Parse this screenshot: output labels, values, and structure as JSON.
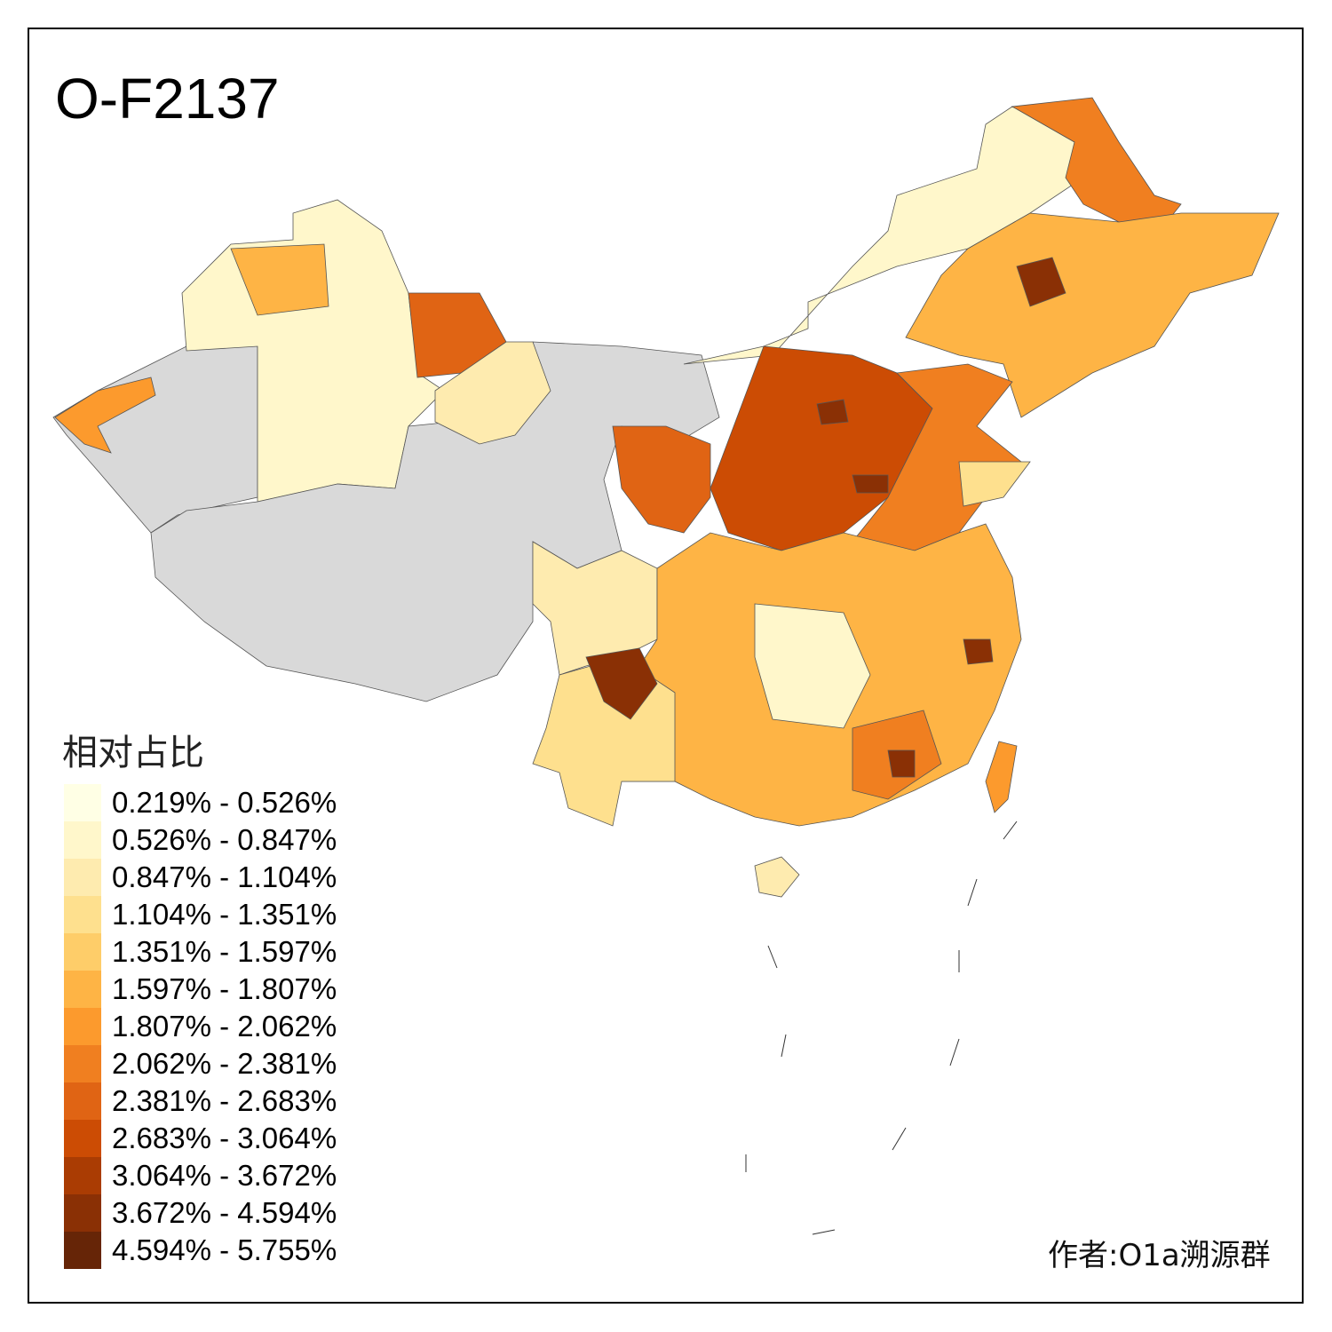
{
  "title": "O-F2137",
  "legend": {
    "title": "相对占比",
    "items": [
      {
        "label": "0.219% - 0.526%",
        "color": "#FFFFE5"
      },
      {
        "label": "0.526% - 0.847%",
        "color": "#FFF7CB"
      },
      {
        "label": "0.847% - 1.104%",
        "color": "#FEEBAF"
      },
      {
        "label": "1.104% - 1.351%",
        "color": "#FEE08E"
      },
      {
        "label": "1.351% - 1.597%",
        "color": "#FECD69"
      },
      {
        "label": "1.597% - 1.807%",
        "color": "#FEB445"
      },
      {
        "label": "1.807% - 2.062%",
        "color": "#FC9A2D"
      },
      {
        "label": "2.062% - 2.381%",
        "color": "#F07F20"
      },
      {
        "label": "2.381% - 2.683%",
        "color": "#E06414"
      },
      {
        "label": "2.683% - 3.064%",
        "color": "#CC4C04"
      },
      {
        "label": "3.064% - 3.672%",
        "color": "#AA3C03"
      },
      {
        "label": "3.672% - 4.594%",
        "color": "#8A3005"
      },
      {
        "label": "4.594% - 5.755%",
        "color": "#662507"
      }
    ]
  },
  "no_data_color": "#D9D9D9",
  "author": "作者:O1a溯源群"
}
